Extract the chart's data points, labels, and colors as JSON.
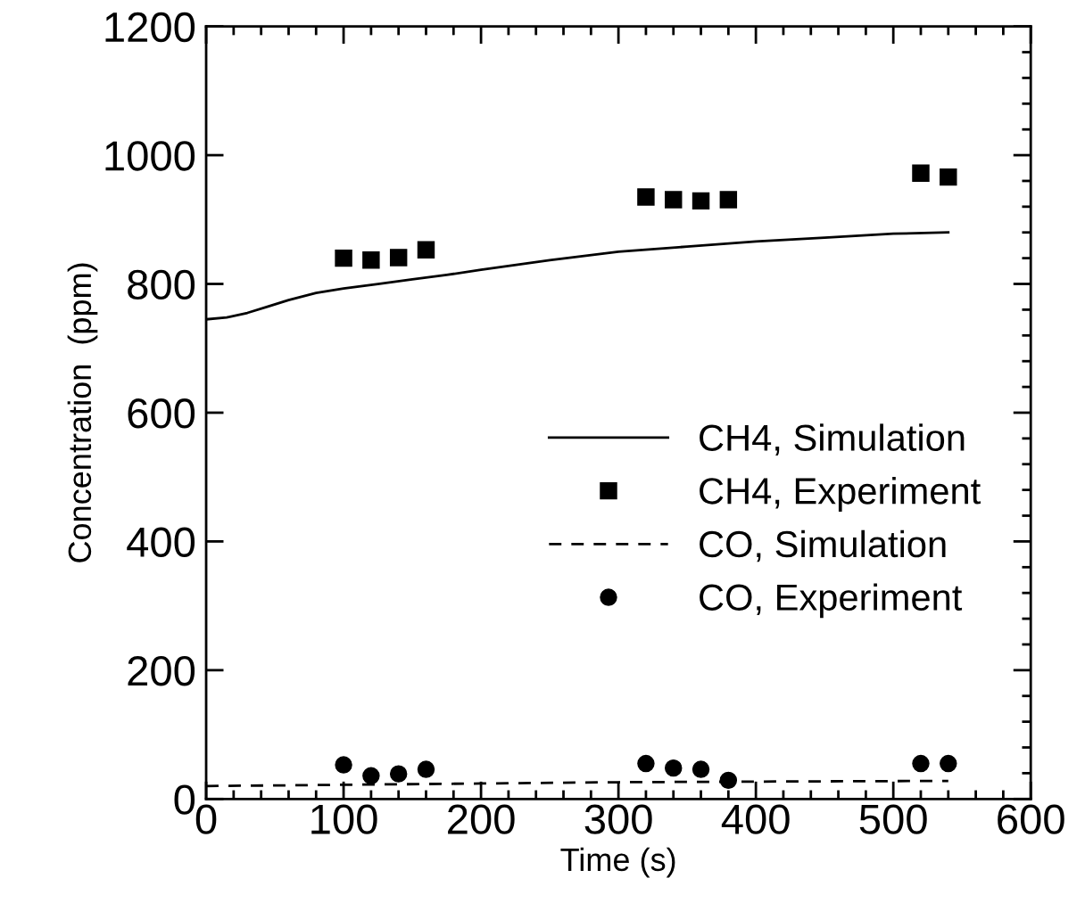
{
  "chart_data": {
    "type": "line",
    "xlabel": "Time (s)",
    "ylabel": "Concentration  (ppm)",
    "xlim": [
      0,
      600
    ],
    "xticks": [
      0,
      100,
      200,
      300,
      400,
      500,
      600
    ],
    "ylim": [
      0,
      1200
    ],
    "yticks": [
      0,
      200,
      400,
      600,
      800,
      1000,
      1200
    ],
    "grid": false,
    "legend": "right",
    "series": [
      {
        "name": "CH4, Simulation",
        "line_style": "solid",
        "marker": "none",
        "color": "#000000",
        "x": [
          0,
          15,
          30,
          45,
          60,
          80,
          100,
          125,
          150,
          175,
          200,
          250,
          300,
          350,
          400,
          450,
          500,
          540
        ],
        "values": [
          745,
          748,
          755,
          765,
          775,
          786,
          793,
          800,
          807,
          814,
          822,
          837,
          850,
          858,
          866,
          872,
          878,
          880
        ]
      },
      {
        "name": "CH4, Experiment",
        "type": "scatter",
        "marker": "square",
        "color": "#000000",
        "x": [
          100,
          120,
          140,
          160,
          320,
          340,
          360,
          380,
          520,
          540
        ],
        "values": [
          840,
          837,
          841,
          853,
          935,
          931,
          929,
          931,
          972,
          966
        ]
      },
      {
        "name": "CO, Simulation",
        "line_style": "dashed",
        "marker": "none",
        "color": "#000000",
        "x": [
          0,
          100,
          200,
          300,
          400,
          540
        ],
        "values": [
          20,
          22,
          24,
          26,
          27,
          28
        ]
      },
      {
        "name": "CO, Experiment",
        "type": "scatter",
        "marker": "circle",
        "color": "#000000",
        "x": [
          100,
          120,
          140,
          160,
          320,
          340,
          360,
          380,
          520,
          540
        ],
        "values": [
          53,
          36,
          39,
          46,
          55,
          48,
          46,
          29,
          55,
          55
        ]
      }
    ]
  }
}
